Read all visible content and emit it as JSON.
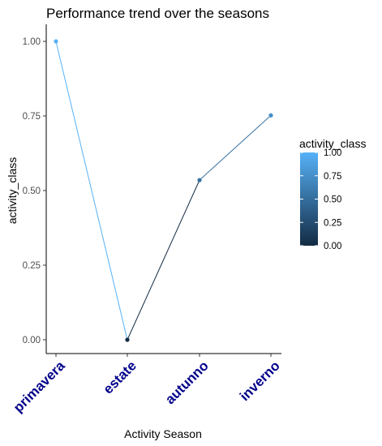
{
  "chart_data": {
    "type": "line",
    "title": "Performance trend over the seasons",
    "xlabel": "Activity Season",
    "ylabel": "activity_class",
    "categories": [
      "primavera",
      "estate",
      "autunno",
      "inverno"
    ],
    "values": [
      1.0,
      0.0,
      0.535,
      0.752
    ],
    "ylim": [
      0,
      1
    ],
    "yticks": [
      0,
      0.25,
      0.5,
      0.75,
      1
    ],
    "ytick_labels": [
      "0.00",
      "0.25",
      "0.50",
      "0.75",
      "1.00"
    ],
    "xtick_color": "#00008b",
    "grid": false,
    "legend": {
      "title": "activity_class",
      "placement": "right",
      "type": "colorbar",
      "ticks": [
        0,
        0.25,
        0.5,
        0.75,
        1
      ],
      "tick_labels": [
        "0.00",
        "0.25",
        "0.50",
        "0.75",
        "1.00"
      ],
      "color_low": "#132b43",
      "color_high": "#56b1f7"
    }
  }
}
